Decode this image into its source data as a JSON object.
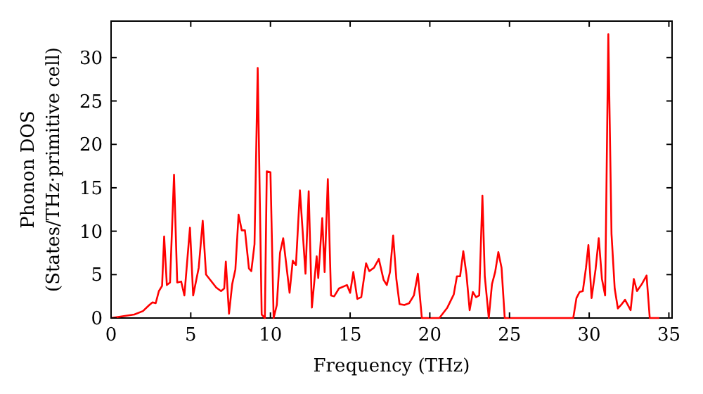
{
  "chart_data": {
    "type": "line",
    "xlabel": "Frequency (THz)",
    "ylabel": "Phonon DOS\n(States/THz·primitive cell)",
    "xlim": [
      0,
      35.2
    ],
    "ylim": [
      0,
      34.2
    ],
    "xticks": [
      0,
      5,
      10,
      15,
      20,
      25,
      30,
      35
    ],
    "yticks": [
      0,
      5,
      10,
      15,
      20,
      25,
      30
    ],
    "grid": false,
    "marker": "none",
    "line_style": "solid",
    "series": [
      {
        "color": "#ff0000",
        "x": [
          0,
          1.46,
          2.0,
          2.4,
          2.6,
          2.8,
          3.0,
          3.2,
          3.33,
          3.5,
          3.7,
          3.95,
          4.15,
          4.4,
          4.6,
          4.95,
          5.15,
          5.5,
          5.75,
          5.96,
          6.6,
          6.9,
          7.1,
          7.2,
          7.4,
          7.6,
          7.8,
          8.0,
          8.2,
          8.4,
          8.65,
          8.8,
          9.0,
          9.2,
          9.45,
          9.65,
          9.77,
          10.0,
          10.2,
          10.4,
          10.6,
          10.8,
          11.2,
          11.4,
          11.6,
          11.85,
          12.2,
          12.4,
          12.6,
          12.9,
          13.0,
          13.25,
          13.4,
          13.6,
          13.8,
          14.0,
          14.3,
          14.8,
          15.0,
          15.2,
          15.45,
          15.7,
          16.0,
          16.2,
          16.5,
          16.8,
          17.1,
          17.3,
          17.5,
          17.7,
          17.9,
          18.1,
          18.4,
          18.7,
          19.0,
          19.25,
          19.5,
          20.6,
          21.1,
          21.5,
          21.7,
          21.9,
          22.1,
          22.3,
          22.5,
          22.7,
          22.9,
          23.1,
          23.3,
          23.45,
          23.7,
          23.9,
          24.1,
          24.3,
          24.5,
          24.7,
          29.0,
          29.2,
          29.4,
          29.6,
          29.8,
          29.95,
          30.15,
          30.4,
          30.6,
          30.8,
          31.0,
          31.2,
          31.4,
          31.6,
          31.8,
          32.0,
          32.25,
          32.4,
          32.6,
          32.8,
          33.0,
          33.3,
          33.6,
          33.8,
          34.4
        ],
        "values": [
          0,
          0.4,
          0.8,
          1.5,
          1.8,
          1.7,
          3.1,
          3.7,
          9.4,
          3.8,
          4.1,
          16.5,
          4.1,
          4.2,
          2.6,
          10.4,
          2.6,
          5.8,
          11.2,
          5.0,
          3.5,
          3.1,
          3.4,
          6.5,
          0.5,
          3.9,
          5.6,
          11.9,
          10.1,
          10.1,
          5.7,
          5.4,
          8.5,
          28.8,
          0.4,
          0,
          16.9,
          16.8,
          0,
          1.5,
          7.5,
          9.2,
          2.9,
          6.6,
          6.1,
          14.7,
          5.1,
          14.6,
          1.2,
          7.1,
          4.6,
          11.5,
          5.3,
          16.0,
          2.6,
          2.5,
          3.4,
          3.8,
          2.9,
          5.3,
          2.2,
          2.4,
          6.3,
          5.4,
          5.8,
          6.8,
          4.4,
          3.8,
          5.3,
          9.5,
          4.5,
          1.6,
          1.5,
          1.7,
          2.6,
          5.1,
          0,
          0,
          1.2,
          2.7,
          4.8,
          4.8,
          7.7,
          5.0,
          0.9,
          3.0,
          2.4,
          2.6,
          14.1,
          4.8,
          0,
          3.9,
          5.3,
          7.6,
          5.8,
          0,
          0,
          2.3,
          3.0,
          3.1,
          5.8,
          8.4,
          2.3,
          5.6,
          9.2,
          4.5,
          2.6,
          32.7,
          9.7,
          3.4,
          1.1,
          1.5,
          2.1,
          1.6,
          0.9,
          4.5,
          3.1,
          3.9,
          4.9,
          0,
          0
        ]
      }
    ]
  }
}
